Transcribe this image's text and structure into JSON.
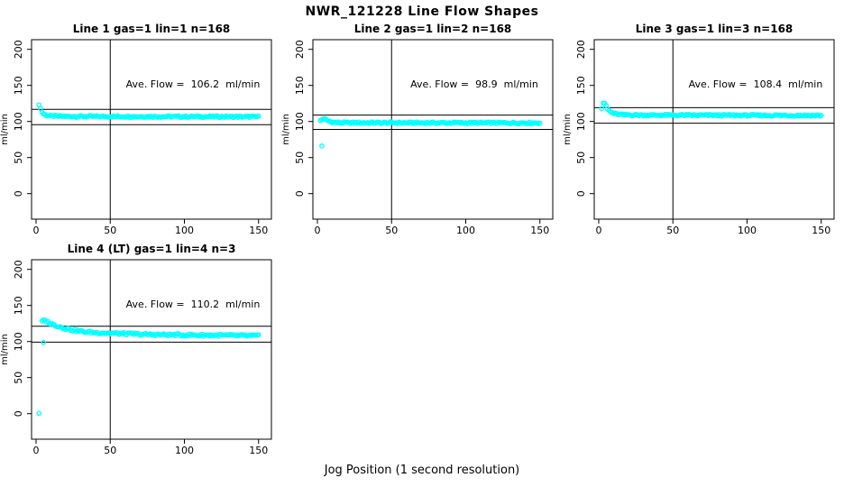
{
  "chart_data": {
    "type": "scatter",
    "title": "NWR_121228  Line Flow Shapes",
    "xlabel": "Jog Position (1 second resolution)",
    "ylabel": "ml/min",
    "marker_color": "#00FFFF",
    "axis_color": "#000000",
    "x_ticks": [
      0,
      50,
      100,
      150
    ],
    "y_ticks": [
      0,
      50,
      100,
      150,
      200
    ],
    "xlim": [
      0,
      150
    ],
    "ylim": [
      0,
      200
    ],
    "vline_x": 50,
    "legend": "none",
    "grid": false,
    "plots": [
      {
        "title": "Line 1 gas=1 lin=1 n=168",
        "ave_flow": 106.2,
        "annotation": "Ave. Flow =  106.2  ml/min",
        "ref_lines": [
          116.8,
          95.6
        ],
        "curve": [
          [
            2,
            124
          ],
          [
            3,
            118
          ],
          [
            4,
            113
          ],
          [
            5,
            110.5
          ],
          [
            7,
            108.5
          ],
          [
            10,
            107.5
          ],
          [
            20,
            107
          ],
          [
            150,
            106.5
          ]
        ],
        "noise": 1.2,
        "outliers": []
      },
      {
        "title": "Line 2 gas=1 lin=2 n=168",
        "ave_flow": 98.9,
        "annotation": "Ave. Flow =  98.9  ml/min",
        "ref_lines": [
          108.8,
          89.0
        ],
        "curve": [
          [
            2,
            101
          ],
          [
            4,
            104
          ],
          [
            6,
            102
          ],
          [
            8,
            100
          ],
          [
            12,
            98.6
          ],
          [
            20,
            98.2
          ],
          [
            150,
            98
          ]
        ],
        "noise": 1.2,
        "outliers": [
          [
            3,
            66
          ]
        ]
      },
      {
        "title": "Line 3 gas=1 lin=3 n=168",
        "ave_flow": 108.4,
        "annotation": "Ave. Flow =  108.4  ml/min",
        "ref_lines": [
          119.2,
          97.6
        ],
        "curve": [
          [
            2,
            118
          ],
          [
            3,
            126
          ],
          [
            5,
            122
          ],
          [
            6,
            117
          ],
          [
            8,
            113
          ],
          [
            11,
            110.5
          ],
          [
            16,
            109.3
          ],
          [
            30,
            108.8
          ],
          [
            150,
            108.3
          ]
        ],
        "noise": 1.2,
        "outliers": []
      },
      {
        "title": "Line 4 (LT) gas=1 lin=4 n=3",
        "ave_flow": 110.2,
        "annotation": "Ave. Flow =  110.2  ml/min",
        "ref_lines": [
          121.2,
          99.2
        ],
        "curve": [
          [
            4,
            128
          ],
          [
            6,
            129
          ],
          [
            8,
            127
          ],
          [
            11,
            124
          ],
          [
            15,
            121
          ],
          [
            20,
            118
          ],
          [
            27,
            115
          ],
          [
            35,
            113
          ],
          [
            50,
            111.5
          ],
          [
            70,
            110
          ],
          [
            100,
            109
          ],
          [
            125,
            108.6
          ],
          [
            150,
            107.8
          ]
        ],
        "noise": 1.6,
        "outliers": [
          [
            2,
            0.5
          ],
          [
            5,
            98.5
          ]
        ]
      }
    ]
  }
}
